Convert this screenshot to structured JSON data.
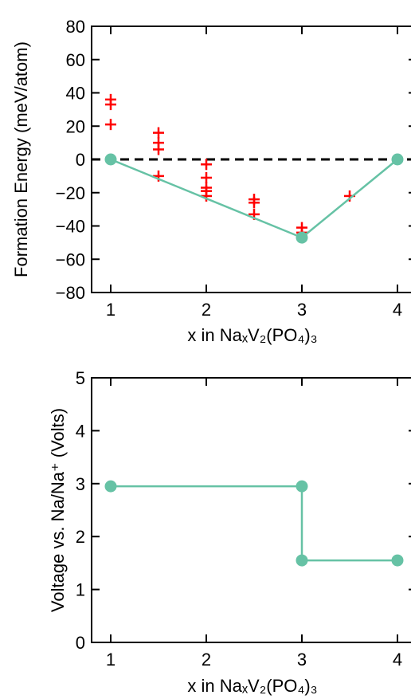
{
  "chart_data": [
    {
      "type": "scatter",
      "xlabel": "x in NaₓV₂(PO₄)₃",
      "ylabel": "Formation Energy (meV/atom)",
      "xlim": [
        0.8,
        4.2
      ],
      "ylim": [
        -80,
        80
      ],
      "xticks": [
        1,
        2,
        3,
        4
      ],
      "yticks": [
        -80,
        -60,
        -40,
        -20,
        0,
        20,
        40,
        60,
        80
      ],
      "xtick_labels": [
        "1",
        "2",
        "3",
        "4"
      ],
      "ytick_labels": [
        "−80",
        "−60",
        "−40",
        "−20",
        "0",
        "20",
        "40",
        "60",
        "80"
      ],
      "zero_line": {
        "y": 0,
        "style": "dashed",
        "color": "#000000"
      },
      "series": [
        {
          "marker": "plus",
          "color": "#ff0000",
          "points": [
            {
              "x": 1,
              "y": 36
            },
            {
              "x": 1,
              "y": 33
            },
            {
              "x": 1,
              "y": 21
            },
            {
              "x": 1.5,
              "y": 16
            },
            {
              "x": 1.5,
              "y": 10
            },
            {
              "x": 1.5,
              "y": 6
            },
            {
              "x": 1.5,
              "y": -10
            },
            {
              "x": 2,
              "y": -3
            },
            {
              "x": 2,
              "y": -11
            },
            {
              "x": 2,
              "y": -17
            },
            {
              "x": 2,
              "y": -19
            },
            {
              "x": 2,
              "y": -22
            },
            {
              "x": 2.5,
              "y": -24
            },
            {
              "x": 2.5,
              "y": -26
            },
            {
              "x": 2.5,
              "y": -33
            },
            {
              "x": 3,
              "y": -41
            },
            {
              "x": 3,
              "y": -44
            },
            {
              "x": 3,
              "y": -46
            },
            {
              "x": 3.5,
              "y": -22
            }
          ]
        },
        {
          "marker": "circle-line",
          "color": "#66c2a5",
          "line_points": [
            {
              "x": 1,
              "y": 0
            },
            {
              "x": 3,
              "y": -47
            },
            {
              "x": 4,
              "y": 0
            }
          ],
          "circle_points": [
            {
              "x": 1,
              "y": 0
            },
            {
              "x": 3,
              "y": -47
            },
            {
              "x": 4,
              "y": 0
            }
          ]
        }
      ]
    },
    {
      "type": "line",
      "xlabel": "x in NaₓV₂(PO₄)₃",
      "ylabel": "Voltage vs. Na/Na⁺ (Volts)",
      "xlim": [
        0.8,
        4.2
      ],
      "ylim": [
        0,
        5
      ],
      "xticks": [
        1,
        2,
        3,
        4
      ],
      "yticks": [
        0,
        1,
        2,
        3,
        4,
        5
      ],
      "xtick_labels": [
        "1",
        "2",
        "3",
        "4"
      ],
      "ytick_labels": [
        "0",
        "1",
        "2",
        "3",
        "4",
        "5"
      ],
      "series": [
        {
          "color": "#66c2a5",
          "line_points": [
            {
              "x": 1,
              "y": 2.95
            },
            {
              "x": 3,
              "y": 2.95
            },
            {
              "x": 3,
              "y": 1.55
            },
            {
              "x": 4,
              "y": 1.55
            }
          ],
          "circle_points": [
            {
              "x": 1,
              "y": 2.95
            },
            {
              "x": 3,
              "y": 2.95
            },
            {
              "x": 3,
              "y": 1.55
            },
            {
              "x": 4,
              "y": 1.55
            }
          ]
        }
      ]
    }
  ]
}
